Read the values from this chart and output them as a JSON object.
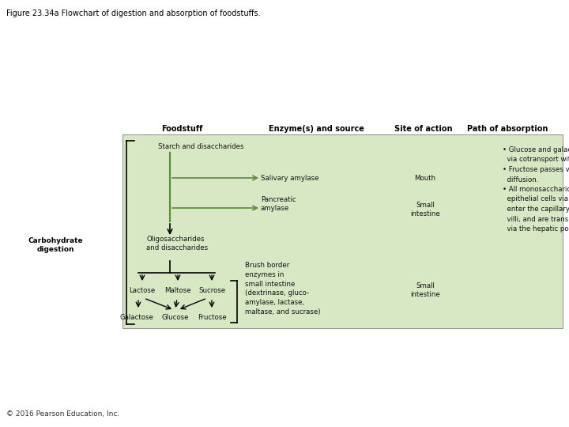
{
  "title": "Figure 23.34a Flowchart of digestion and absorption of foodstuffs.",
  "footer": "© 2016 Pearson Education, Inc.",
  "bg_color": "#ffffff",
  "box_bg": "#d9e8c4",
  "box_border": "#aaaaaa",
  "header_color": "#000000",
  "headers": [
    "Foodstuff",
    "Enzyme(s) and source",
    "Site of action",
    "Path of absorption"
  ],
  "green_line_color": "#5a8a3c",
  "text_color": "#111111",
  "carb_label": "Carbohydrate\ndigestion",
  "absorption_text": "• Glucose and galactose are absorbed\n  via cotransport with Na⁺.\n• Fructose passes via facilitated\n  diffusion.\n• All monosaccharides leave the\n  epithelial cells via facilitated diffusion,\n  enter the capillary blood in the\n  villi, and are transported to the liver\n  via the hepatic portal vein.",
  "font_size_title": 7.0,
  "font_size_header": 7.0,
  "font_size_body": 6.2,
  "font_size_carb": 6.5,
  "font_size_footer": 6.5
}
